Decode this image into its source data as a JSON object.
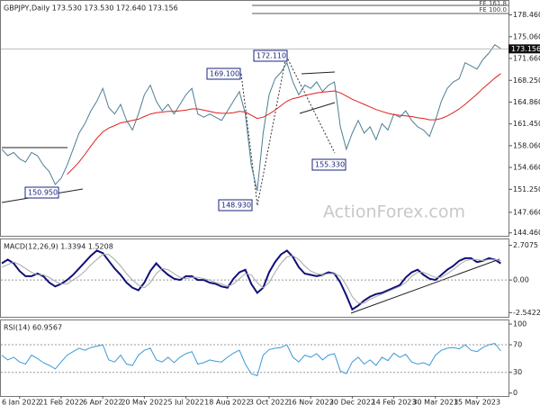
{
  "chart_data": [
    {
      "type": "line",
      "title": "GBPJPY,Daily  173.530 173.530 172.640 173.156",
      "categories": [
        null,
        null,
        null,
        "6 Jan 2022",
        null,
        null,
        null,
        null,
        null,
        null,
        "21 Feb 2022",
        null,
        null,
        null,
        null,
        null,
        null,
        "6 Apr 2022",
        null,
        null,
        null,
        null,
        null,
        null,
        "20 May 2022",
        null,
        null,
        null,
        null,
        null,
        null,
        "5 Jul 2022",
        null,
        null,
        null,
        null,
        null,
        null,
        "18 Aug 2022",
        null,
        null,
        null,
        null,
        null,
        null,
        "3 Oct 2022",
        null,
        null,
        null,
        null,
        null,
        null,
        "16 Nov 2022",
        null,
        null,
        null,
        null,
        null,
        null,
        "30 Dec 2022",
        null,
        null,
        null,
        null,
        null,
        null,
        "14 Feb 2023",
        null,
        null,
        null,
        null,
        null,
        null,
        "30 Mar 2023",
        null,
        null,
        null,
        null,
        null,
        null,
        "15 May 2023",
        null,
        null,
        null,
        null
      ],
      "series": [
        {
          "color": "#4d7f93",
          "values": [
            157.5,
            156.5,
            157.0,
            156.0,
            155.5,
            157.0,
            156.5,
            155.0,
            154.0,
            152.0,
            153.0,
            155.0,
            157.5,
            160.0,
            161.5,
            163.5,
            165.0,
            167.0,
            164.0,
            163.0,
            164.5,
            162.0,
            160.5,
            163.0,
            166.0,
            167.5,
            165.0,
            163.5,
            164.5,
            163.0,
            164.5,
            166.0,
            167.0,
            163.0,
            162.5,
            163.0,
            162.5,
            162.0,
            163.5,
            165.0,
            166.5,
            163.0,
            155.0,
            151.0,
            160.0,
            166.0,
            168.5,
            169.5,
            171.0,
            168.0,
            166.0,
            167.5,
            167.0,
            168.0,
            166.5,
            167.5,
            168.0,
            161.0,
            157.5,
            160.0,
            162.0,
            160.0,
            161.0,
            159.0,
            161.5,
            160.5,
            163.0,
            162.5,
            163.5,
            162.0,
            161.0,
            160.5,
            159.5,
            162.0,
            165.0,
            167.0,
            168.0,
            168.5,
            171.0,
            170.5,
            170.0,
            171.5,
            172.5,
            173.8,
            173.2
          ]
        },
        {
          "color": "#e0201c",
          "values": [
            null,
            null,
            null,
            null,
            null,
            null,
            null,
            null,
            null,
            null,
            null,
            153.6,
            154.5,
            155.5,
            156.7,
            158.0,
            159.2,
            160.2,
            160.8,
            161.2,
            161.6,
            161.8,
            162.0,
            162.2,
            162.6,
            163.0,
            163.2,
            163.3,
            163.4,
            163.4,
            163.5,
            163.6,
            163.8,
            163.8,
            163.6,
            163.4,
            163.2,
            163.1,
            163.1,
            163.2,
            163.4,
            163.3,
            162.8,
            162.3,
            162.5,
            163.0,
            163.6,
            164.3,
            165.0,
            165.4,
            165.6,
            165.9,
            166.1,
            166.3,
            166.4,
            166.5,
            166.6,
            166.3,
            165.8,
            165.3,
            164.9,
            164.5,
            164.1,
            163.7,
            163.4,
            163.1,
            162.9,
            162.8,
            162.7,
            162.6,
            162.4,
            162.3,
            162.1,
            162.1,
            162.3,
            162.7,
            163.2,
            163.8,
            164.5,
            165.3,
            166.1,
            167.0,
            167.8,
            168.6,
            169.3
          ]
        }
      ],
      "ylim": [
        144.0,
        180.5
      ],
      "yticks": [
        {
          "value": 144.46,
          "label": "144.460"
        },
        {
          "value": 147.66,
          "label": "147.660"
        },
        {
          "value": 151.25,
          "label": "151.250"
        },
        {
          "value": 154.66,
          "label": "154.660"
        },
        {
          "value": 158.06,
          "label": "158.060"
        },
        {
          "value": 161.45,
          "label": "161.450"
        },
        {
          "value": 164.86,
          "label": "164.860"
        },
        {
          "value": 168.25,
          "label": "168.250"
        },
        {
          "value": 171.66,
          "label": "171.660"
        },
        {
          "value": 175.06,
          "label": "175.060"
        },
        {
          "value": 178.46,
          "label": "178.460"
        }
      ],
      "last_price": 173.156,
      "annotations": [
        "172.110",
        "169.100",
        "148.930",
        "150.950",
        "155.330"
      ],
      "fibonacci_labels": [
        "FE 161.8",
        "FE 100.0"
      ],
      "watermark": "ActionForex.com"
    },
    {
      "type": "line",
      "title": "MACD(12,26,9) 1.3394 1.5208",
      "series": [
        {
          "color": "#10107a",
          "values": [
            1.3,
            1.6,
            1.3,
            0.7,
            0.3,
            0.3,
            0.5,
            0.3,
            -0.2,
            -0.5,
            -0.3,
            0.0,
            0.4,
            0.9,
            1.4,
            1.9,
            2.3,
            2.1,
            1.5,
            0.9,
            0.4,
            -0.2,
            -0.6,
            -0.8,
            -0.2,
            0.7,
            1.3,
            0.8,
            0.4,
            0.1,
            0.0,
            0.3,
            0.3,
            0.0,
            0.0,
            -0.2,
            -0.3,
            -0.5,
            -0.6,
            0.1,
            0.6,
            0.8,
            -0.3,
            -1.0,
            -0.6,
            0.6,
            1.4,
            2.0,
            2.3,
            1.8,
            1.0,
            0.5,
            0.4,
            0.3,
            0.4,
            0.6,
            0.5,
            -0.2,
            -1.2,
            -2.3,
            -2.0,
            -1.6,
            -1.3,
            -1.1,
            -1.0,
            -0.8,
            -0.6,
            -0.4,
            0.2,
            0.6,
            0.8,
            0.4,
            0.1,
            0.0,
            0.4,
            0.8,
            1.1,
            1.5,
            1.7,
            1.7,
            1.4,
            1.5,
            1.7,
            1.6,
            1.3
          ]
        },
        {
          "color": "#a8a8a8",
          "values": [
            1.0,
            1.2,
            1.4,
            1.2,
            0.9,
            0.6,
            0.4,
            0.4,
            0.2,
            -0.1,
            -0.3,
            -0.3,
            0.0,
            0.3,
            0.7,
            1.2,
            1.6,
            2.0,
            2.0,
            1.6,
            1.1,
            0.5,
            0.0,
            -0.4,
            -0.6,
            -0.2,
            0.5,
            0.9,
            0.8,
            0.5,
            0.2,
            0.1,
            0.2,
            0.2,
            0.1,
            0.0,
            -0.2,
            -0.3,
            -0.5,
            -0.3,
            0.1,
            0.5,
            0.4,
            -0.2,
            -0.6,
            -0.2,
            0.6,
            1.3,
            1.8,
            1.9,
            1.6,
            1.1,
            0.7,
            0.5,
            0.4,
            0.5,
            0.5,
            0.3,
            -0.4,
            -1.3,
            -1.8,
            -1.8,
            -1.5,
            -1.3,
            -1.1,
            -0.9,
            -0.7,
            -0.5,
            -0.2,
            0.3,
            0.6,
            0.6,
            0.4,
            0.2,
            0.2,
            0.5,
            0.8,
            1.2,
            1.5,
            1.6,
            1.6,
            1.5,
            1.6,
            1.6,
            1.5
          ]
        }
      ],
      "ylim": [
        -2.8,
        3.1
      ],
      "yticks": [
        2.7075,
        {
          "value": 0,
          "label": "0.00"
        },
        -2.5422
      ]
    },
    {
      "type": "line",
      "title": "RSI(14) 60.9567",
      "series": [
        {
          "color": "#3a9ad6",
          "values": [
            55,
            48,
            52,
            45,
            42,
            55,
            50,
            44,
            40,
            35,
            45,
            55,
            60,
            65,
            62,
            66,
            68,
            70,
            48,
            45,
            55,
            42,
            40,
            55,
            62,
            65,
            48,
            45,
            52,
            44,
            52,
            57,
            60,
            42,
            44,
            48,
            46,
            45,
            52,
            58,
            62,
            42,
            28,
            25,
            55,
            63,
            65,
            66,
            70,
            52,
            45,
            55,
            52,
            57,
            48,
            55,
            57,
            32,
            28,
            45,
            52,
            42,
            48,
            40,
            52,
            47,
            58,
            52,
            56,
            45,
            42,
            44,
            40,
            55,
            62,
            65,
            66,
            64,
            70,
            62,
            60,
            66,
            70,
            72,
            61
          ]
        }
      ],
      "ylim": [
        -3,
        104
      ],
      "yticks": [
        100,
        70,
        30,
        0
      ]
    }
  ]
}
